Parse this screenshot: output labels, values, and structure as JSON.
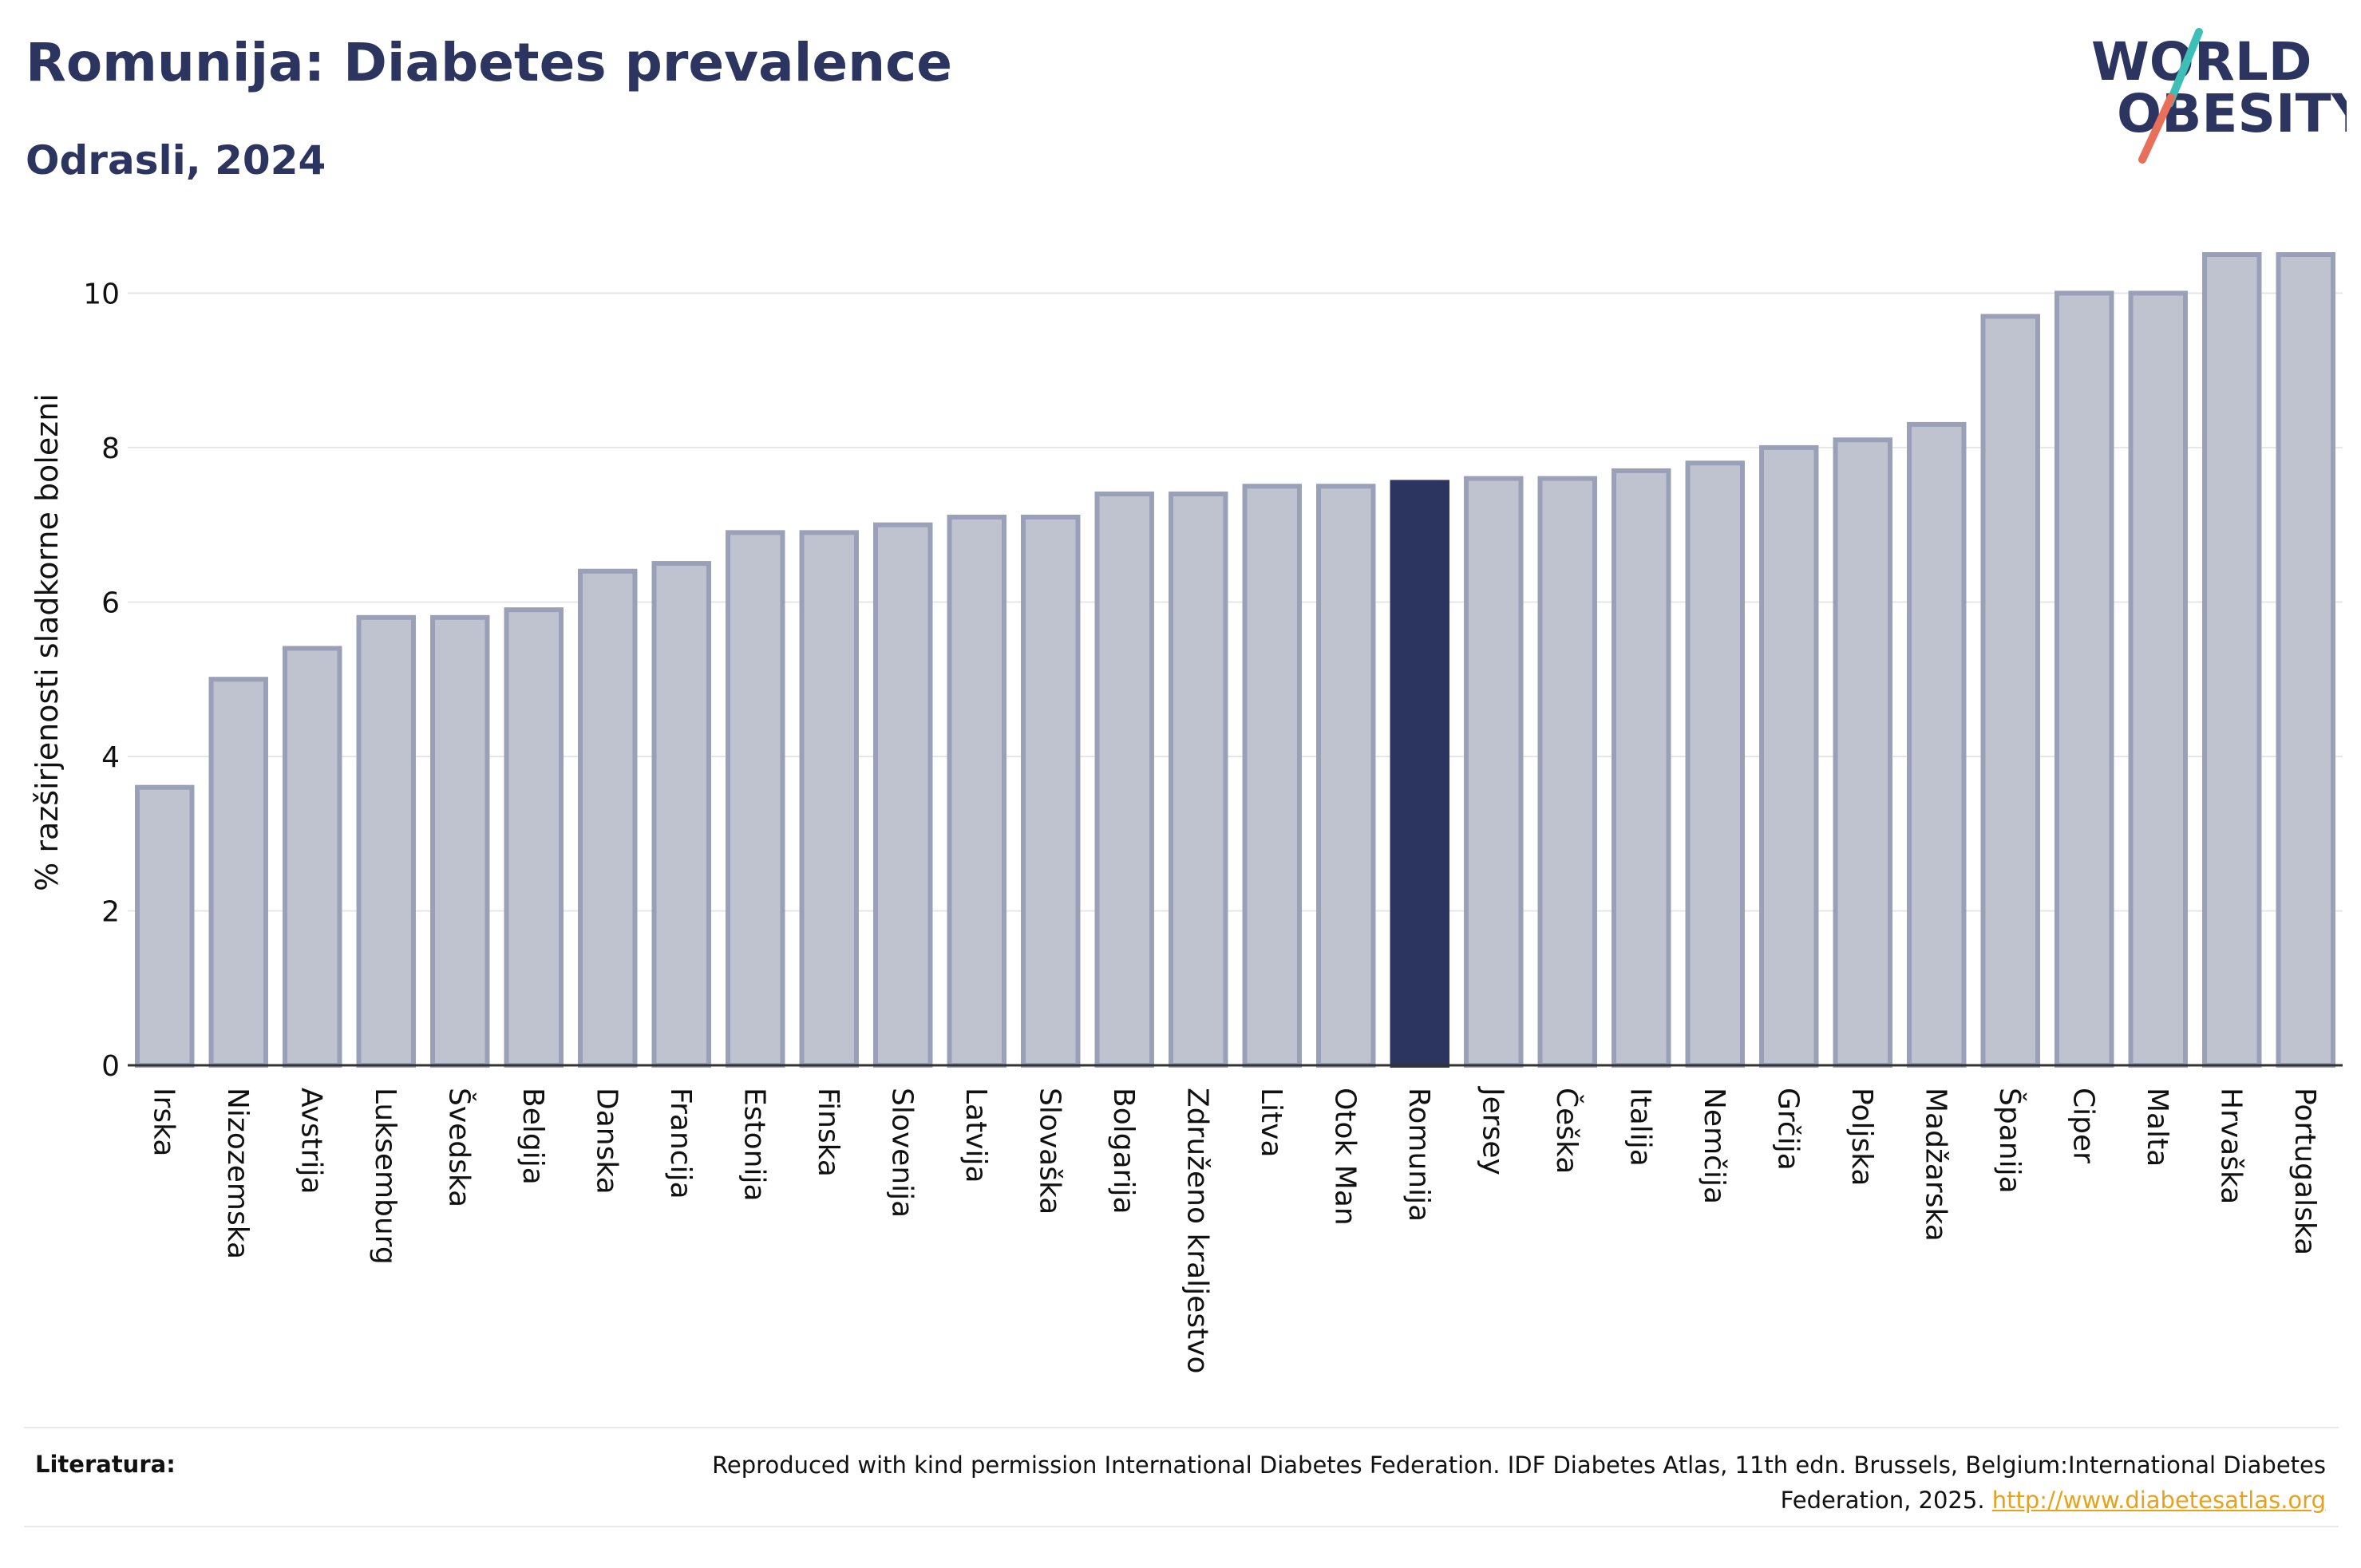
{
  "header": {
    "title": "Romunija: Diabetes prevalence",
    "subtitle": "Odrasli, 2024"
  },
  "logo": {
    "line1": "WORLD",
    "line2": "OBESITY",
    "accent_teal": "#3dbfb8",
    "accent_coral": "#e8705a"
  },
  "colors": {
    "bar_fill": "#bfc2cf",
    "bar_stroke": "#9aa0b8",
    "highlight": "#2b3560",
    "grid": "#e6e6ea",
    "axis": "#333333"
  },
  "chart_data": {
    "type": "bar",
    "title": "Romunija: Diabetes prevalence",
    "subtitle": "Odrasli, 2024",
    "xlabel": "",
    "ylabel": "% razširjenosti sladkorne bolezni",
    "ylim": [
      0,
      10.8
    ],
    "yticks": [
      0,
      2,
      4,
      6,
      8,
      10
    ],
    "grid": true,
    "highlight": "Romunija",
    "categories": [
      "Irska",
      "Nizozemska",
      "Avstrija",
      "Luksemburg",
      "Švedska",
      "Belgija",
      "Danska",
      "Francija",
      "Estonija",
      "Finska",
      "Slovenija",
      "Latvija",
      "Slovaška",
      "Bolgarija",
      "Združeno kraljestvo",
      "Litva",
      "Otok Man",
      "Romunija",
      "Jersey",
      "Češka",
      "Italija",
      "Nemčija",
      "Grčija",
      "Poljska",
      "Madžarska",
      "Španija",
      "Ciper",
      "Malta",
      "Hrvaška",
      "Portugalska"
    ],
    "values": [
      3.6,
      5.0,
      5.4,
      5.8,
      5.8,
      5.9,
      6.4,
      6.5,
      6.9,
      6.9,
      7.0,
      7.1,
      7.1,
      7.4,
      7.4,
      7.5,
      7.5,
      7.55,
      7.6,
      7.6,
      7.7,
      7.8,
      8.0,
      8.1,
      8.3,
      9.7,
      10.0,
      10.0,
      10.5,
      10.5
    ]
  },
  "footer": {
    "label": "Literatura:",
    "text": "Reproduced with kind permission International Diabetes Federation. IDF Diabetes Atlas, 11th edn. Brussels, Belgium:International Diabetes Federation, 2025.",
    "link": "http://www.diabetesatlas.org"
  }
}
